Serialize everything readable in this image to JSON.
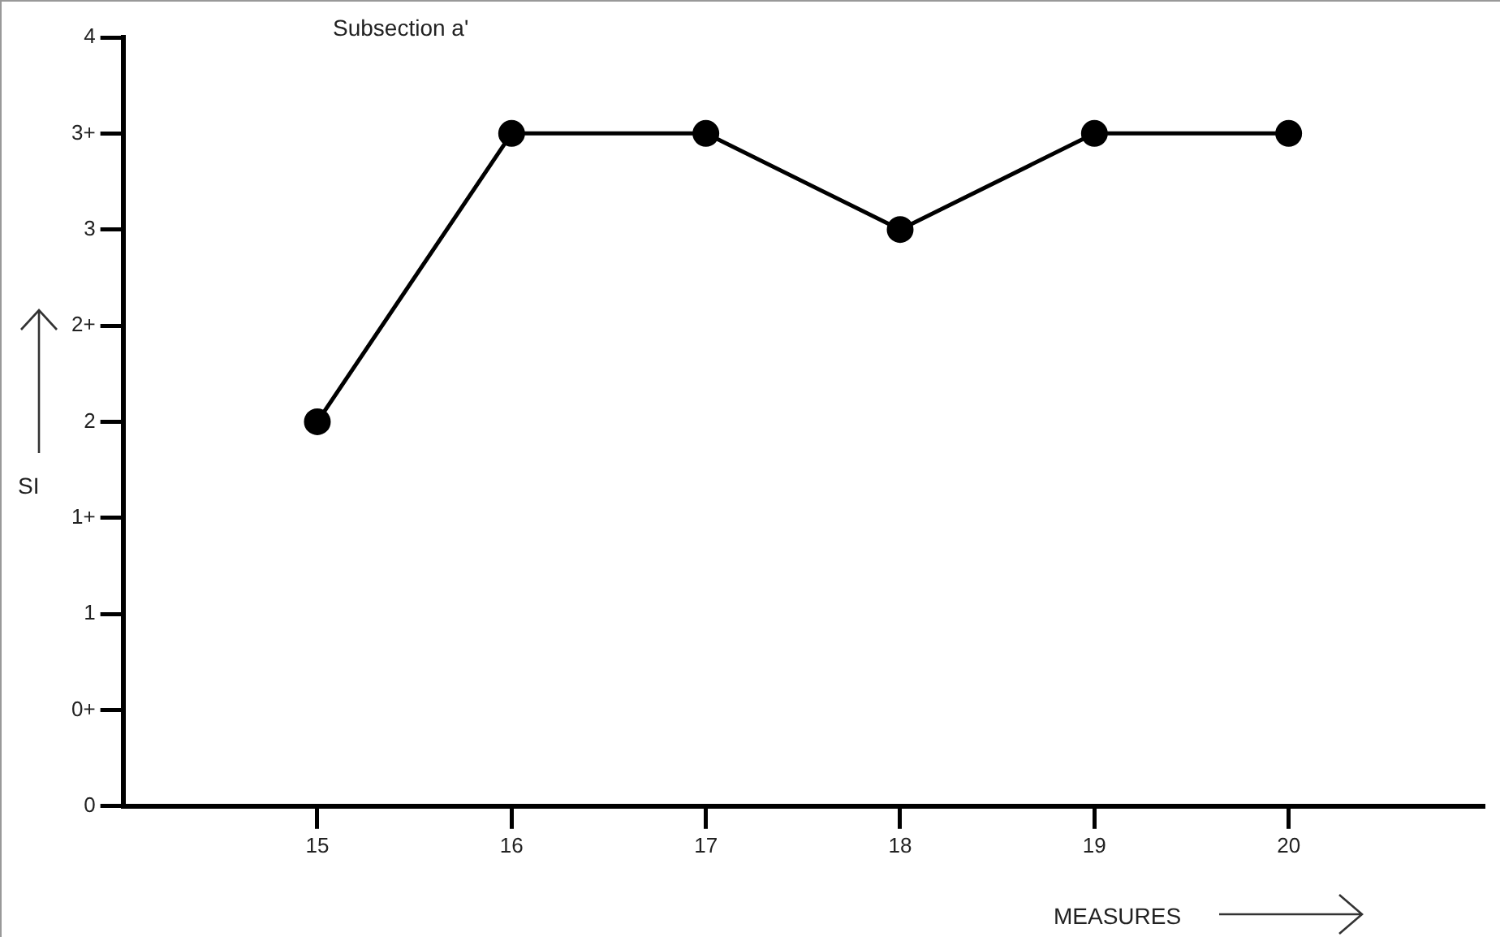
{
  "chart_data": {
    "type": "line",
    "title": "Subsection a'",
    "xlabel": "MEASURES",
    "ylabel": "SI",
    "x": [
      15,
      16,
      17,
      18,
      19,
      20
    ],
    "series": [
      {
        "color": "#000000",
        "values": [
          2,
          3.5,
          3.5,
          3,
          3.5,
          3.5
        ]
      }
    ],
    "xlim": [
      14,
      21
    ],
    "xticks": [
      15,
      16,
      17,
      18,
      19,
      20
    ],
    "ylim": [
      0,
      4
    ],
    "yticks": [
      0,
      {
        "value": 0.5,
        "label": "0+"
      },
      1,
      {
        "value": 1.5,
        "label": "1+"
      },
      2,
      {
        "value": 2.5,
        "label": "2+"
      },
      3,
      {
        "value": 3.5,
        "label": "3+"
      },
      4
    ],
    "grid": false,
    "legend": false,
    "marker": "circle",
    "line_style": "solid"
  }
}
